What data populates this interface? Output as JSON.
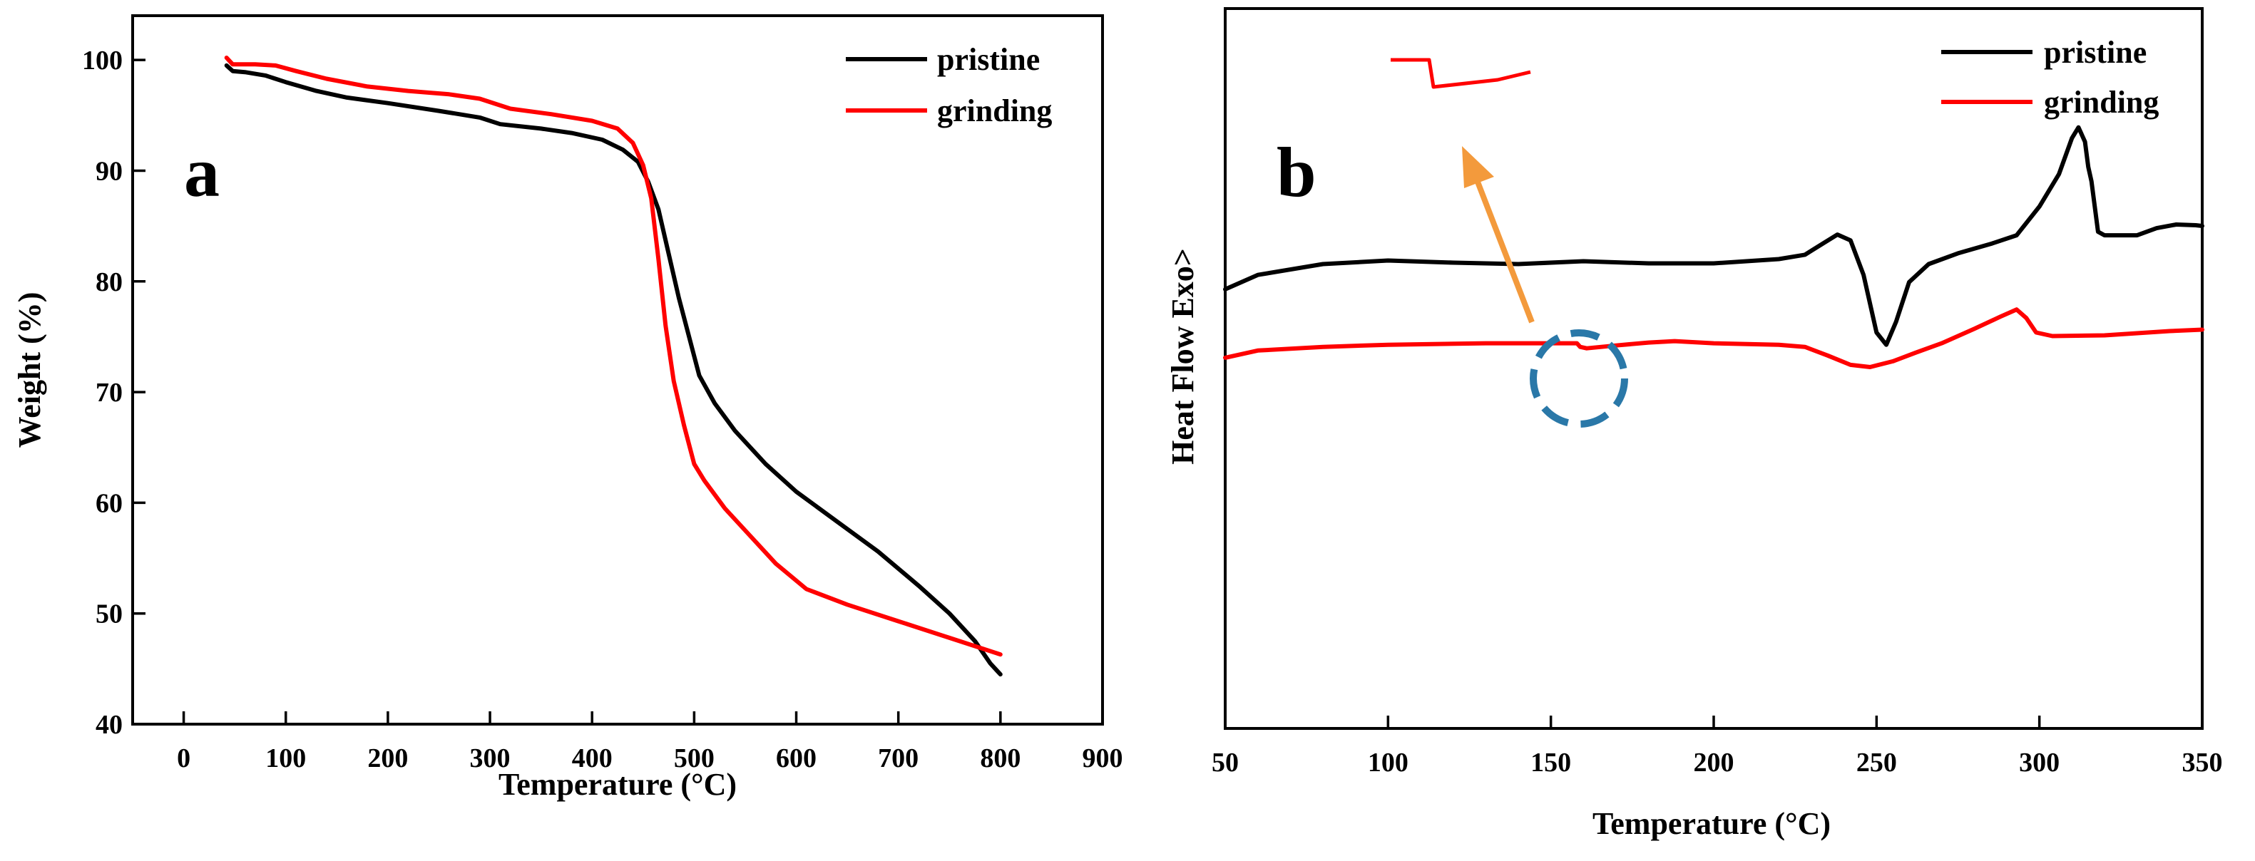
{
  "chart_data": [
    {
      "panel": "a",
      "type": "line",
      "title": "",
      "xlabel": "Temperature (°C)",
      "ylabel": "Weight (%)",
      "xlim": [
        -50,
        900
      ],
      "ylim": [
        40,
        104
      ],
      "xticks": [
        0,
        100,
        200,
        300,
        400,
        500,
        600,
        700,
        800,
        900
      ],
      "yticks": [
        40,
        50,
        60,
        70,
        80,
        90,
        100
      ],
      "legend_position": "top-right",
      "series": [
        {
          "name": "pristine",
          "color": "#000000",
          "points": [
            [
              42,
              99.5
            ],
            [
              48,
              99.0
            ],
            [
              60,
              98.9
            ],
            [
              80,
              98.6
            ],
            [
              100,
              98.0
            ],
            [
              130,
              97.2
            ],
            [
              160,
              96.6
            ],
            [
              200,
              96.1
            ],
            [
              250,
              95.4
            ],
            [
              290,
              94.8
            ],
            [
              310,
              94.2
            ],
            [
              350,
              93.8
            ],
            [
              380,
              93.4
            ],
            [
              410,
              92.8
            ],
            [
              430,
              91.9
            ],
            [
              445,
              90.8
            ],
            [
              455,
              89.0
            ],
            [
              465,
              86.5
            ],
            [
              475,
              82.5
            ],
            [
              485,
              78.5
            ],
            [
              495,
              75.0
            ],
            [
              505,
              71.5
            ],
            [
              520,
              69.0
            ],
            [
              540,
              66.5
            ],
            [
              570,
              63.5
            ],
            [
              600,
              61.0
            ],
            [
              640,
              58.3
            ],
            [
              680,
              55.6
            ],
            [
              720,
              52.5
            ],
            [
              750,
              50.0
            ],
            [
              775,
              47.5
            ],
            [
              790,
              45.5
            ],
            [
              800,
              44.5
            ]
          ]
        },
        {
          "name": "grinding",
          "color": "#ff0000",
          "points": [
            [
              42,
              100.2
            ],
            [
              48,
              99.6
            ],
            [
              70,
              99.6
            ],
            [
              90,
              99.5
            ],
            [
              110,
              99.0
            ],
            [
              140,
              98.3
            ],
            [
              180,
              97.6
            ],
            [
              220,
              97.2
            ],
            [
              260,
              96.9
            ],
            [
              290,
              96.5
            ],
            [
              320,
              95.6
            ],
            [
              360,
              95.1
            ],
            [
              400,
              94.5
            ],
            [
              425,
              93.8
            ],
            [
              440,
              92.5
            ],
            [
              450,
              90.5
            ],
            [
              458,
              87.5
            ],
            [
              465,
              82.0
            ],
            [
              472,
              76.0
            ],
            [
              480,
              71.0
            ],
            [
              490,
              67.0
            ],
            [
              500,
              63.5
            ],
            [
              510,
              62.0
            ],
            [
              530,
              59.5
            ],
            [
              555,
              57.0
            ],
            [
              580,
              54.5
            ],
            [
              610,
              52.2
            ],
            [
              650,
              50.8
            ],
            [
              700,
              49.3
            ],
            [
              750,
              47.8
            ],
            [
              800,
              46.3
            ]
          ]
        }
      ]
    },
    {
      "panel": "b",
      "type": "line",
      "title": "",
      "xlabel": "Temperature (°C)",
      "ylabel": "Heat Flow Exo>",
      "xlim": [
        50,
        350
      ],
      "ylim": [
        0,
        100
      ],
      "xticks": [
        50,
        100,
        150,
        200,
        250,
        300,
        350
      ],
      "yticks": [],
      "legend_position": "top-right",
      "annotations": [
        "dashed circle near 160 °C on grinding curve",
        "inset: zoomed step of grinding curve",
        "orange arrow from circle to inset"
      ],
      "series": [
        {
          "name": "pristine",
          "color": "#000000",
          "points": [
            [
              50,
              61.0
            ],
            [
              60,
              63.0
            ],
            [
              80,
              64.5
            ],
            [
              100,
              65.0
            ],
            [
              120,
              64.7
            ],
            [
              140,
              64.5
            ],
            [
              160,
              64.9
            ],
            [
              180,
              64.6
            ],
            [
              200,
              64.6
            ],
            [
              220,
              65.2
            ],
            [
              228,
              65.8
            ],
            [
              234,
              67.5
            ],
            [
              238,
              68.6
            ],
            [
              242,
              67.8
            ],
            [
              246,
              63.0
            ],
            [
              250,
              55.0
            ],
            [
              253,
              53.3
            ],
            [
              256,
              56.5
            ],
            [
              260,
              62.0
            ],
            [
              266,
              64.5
            ],
            [
              275,
              66.0
            ],
            [
              285,
              67.3
            ],
            [
              293,
              68.5
            ],
            [
              300,
              72.5
            ],
            [
              306,
              77.0
            ],
            [
              310,
              82.0
            ],
            [
              312,
              83.5
            ],
            [
              314,
              81.5
            ],
            [
              315,
              78.0
            ],
            [
              316,
              76.0
            ],
            [
              318,
              69.0
            ],
            [
              320,
              68.5
            ],
            [
              330,
              68.5
            ],
            [
              336,
              69.5
            ],
            [
              342,
              70.0
            ],
            [
              348,
              69.9
            ],
            [
              350,
              69.8
            ]
          ]
        },
        {
          "name": "grinding",
          "color": "#ff0000",
          "points": [
            [
              50,
              51.5
            ],
            [
              60,
              52.5
            ],
            [
              80,
              53.0
            ],
            [
              100,
              53.3
            ],
            [
              130,
              53.5
            ],
            [
              158,
              53.5
            ],
            [
              159,
              53.0
            ],
            [
              161,
              52.8
            ],
            [
              170,
              53.2
            ],
            [
              180,
              53.6
            ],
            [
              188,
              53.8
            ],
            [
              200,
              53.5
            ],
            [
              220,
              53.3
            ],
            [
              228,
              53.0
            ],
            [
              235,
              51.8
            ],
            [
              242,
              50.5
            ],
            [
              248,
              50.2
            ],
            [
              255,
              51.0
            ],
            [
              262,
              52.2
            ],
            [
              270,
              53.5
            ],
            [
              280,
              55.5
            ],
            [
              288,
              57.2
            ],
            [
              293,
              58.2
            ],
            [
              296,
              57.0
            ],
            [
              299,
              55.0
            ],
            [
              304,
              54.5
            ],
            [
              320,
              54.6
            ],
            [
              340,
              55.2
            ],
            [
              350,
              55.4
            ]
          ]
        }
      ]
    }
  ]
}
